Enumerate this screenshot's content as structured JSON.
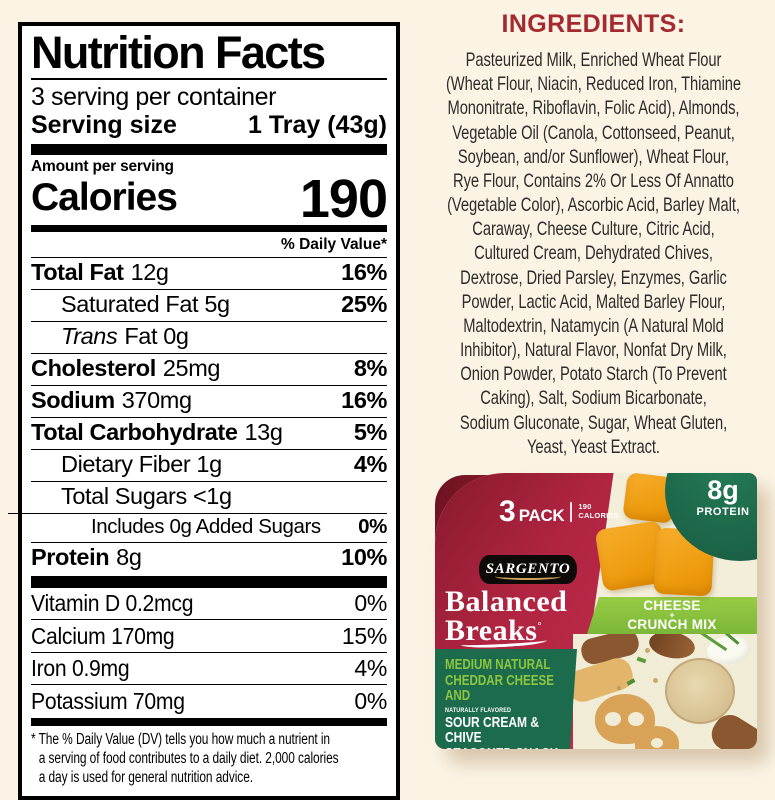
{
  "page": {
    "background": "#FBF4E5"
  },
  "nutrition_label": {
    "title": "Nutrition Facts",
    "servings_per_container": "3 serving per container",
    "serving_size_label": "Serving size",
    "serving_size_value": "1 Tray (43g)",
    "amount_per_serving": "Amount per serving",
    "calories_label": "Calories",
    "calories_value": "190",
    "daily_value_header": "% Daily Value*",
    "rows": [
      {
        "name": "Total Fat",
        "amount": "12g",
        "dv": "16%",
        "bold": true
      },
      {
        "name": "",
        "amount": "Saturated Fat 5g",
        "dv": "25%",
        "indent": 1
      },
      {
        "name": "Trans",
        "amount": "Fat 0g",
        "dv": "",
        "indent": 1,
        "italic": true
      },
      {
        "name": "Cholesterol",
        "amount": "25mg",
        "dv": "8%",
        "bold": true
      },
      {
        "name": "Sodium",
        "amount": "370mg",
        "dv": "16%",
        "bold": true
      },
      {
        "name": "Total Carbohydrate",
        "amount": "13g",
        "dv": "5%",
        "bold": true
      },
      {
        "name": "",
        "amount": "Dietary Fiber 1g",
        "dv": "4%",
        "indent": 1
      },
      {
        "name": "",
        "amount": "Total Sugars <1g",
        "dv": "",
        "indent": 1
      },
      {
        "name": "",
        "amount": "Includes 0g Added Sugars",
        "dv": "0%",
        "indent": 2,
        "inset_rule": true,
        "small": true
      },
      {
        "name": "Protein",
        "amount": "8g",
        "dv": "10%",
        "bold": true
      }
    ],
    "micronutrients": [
      {
        "label": "Vitamin D 0.2mcg",
        "dv": "0%"
      },
      {
        "label": "Calcium 170mg",
        "dv": "15%"
      },
      {
        "label": "Iron 0.9mg",
        "dv": "4%"
      },
      {
        "label": "Potassium 70mg",
        "dv": "0%"
      }
    ],
    "footnote_lines": [
      "* The % Daily Value (DV) tells you how much a nutrient in",
      "a serving of food contributes to a daily diet. 2,000 calories",
      "a day is used for general nutrition advice."
    ]
  },
  "ingredients": {
    "heading": "INGREDIENTS:",
    "heading_color": "#A42A30",
    "lines": [
      "Pasteurized Milk, Enriched Wheat Flour",
      "(Wheat Flour, Niacin, Reduced Iron, Thiamine",
      "Mononitrate, Riboflavin, Folic Acid), Almonds,",
      "Vegetable Oil (Canola, Cottonseed, Peanut,",
      "Soybean, and/or Sunflower), Wheat Flour,",
      "Rye Flour, Contains 2% Or Less Of Annatto",
      "(Vegetable Color), Ascorbic Acid, Barley Malt,",
      "Caraway, Cheese Culture, Citric Acid,",
      "Cultured Cream, Dehydrated Chives,",
      "Dextrose, Dried Parsley, Enzymes, Garlic",
      "Powder, Lactic Acid, Malted Barley Flour,",
      "Maltodextrin, Natamycin (A Natural Mold",
      "Inhibitor), Natural Flavor, Nonfat Dry Milk,",
      "Onion Powder, Potato Starch (To Prevent",
      "Caking), Salt, Sodium Bicarbonate,",
      "Sodium Gluconate, Sugar, Wheat Gluten,",
      "Yeast, Yeast Extract."
    ]
  },
  "package": {
    "pack_count": "3",
    "pack_label": "PACK",
    "pack_calories_value": "190",
    "pack_calories_label": "CALORIES",
    "protein_value": "8g",
    "protein_label": "PROTEIN",
    "brand": "SARGENTO",
    "title_line1": "Balanced",
    "title_line2": "Breaks",
    "banner_line1": "CHEESE",
    "banner_plus": "+",
    "banner_line2": "CRUNCH MIX",
    "flavor_green_lines": "MEDIUM NATURAL\nCHEDDAR CHEESE AND",
    "flavor_tiny": "NATURALLY FLAVORED",
    "flavor_white_lines": "SOUR CREAM & CHIVE\nSEASONED SNACK MIX",
    "colors": {
      "box_red": "#B02441",
      "tray_maroon": "#801729",
      "dark_green": "#1C6B4C",
      "light_green": "#8DC63F",
      "cream": "#F1ECD6",
      "cheese_orange": "#EC9A0C"
    }
  }
}
